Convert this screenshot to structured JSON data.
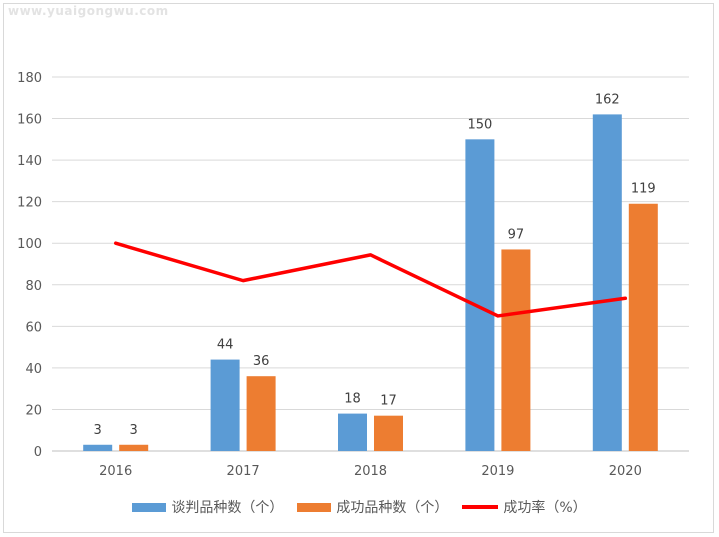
{
  "watermark": "www.yuaigongwu.com",
  "colors": {
    "blue": "#5b9bd5",
    "orange": "#ed7d31",
    "red": "#ff0000",
    "grid": "#d9d9d9",
    "axis": "#bfbfbf"
  },
  "chart_data": {
    "type": "bar",
    "title": "",
    "xlabel": "",
    "ylabel": "",
    "categories": [
      "2016",
      "2017",
      "2018",
      "2019",
      "2020"
    ],
    "ylim": [
      0,
      180
    ],
    "yticks": [
      0,
      20,
      40,
      60,
      80,
      100,
      120,
      140,
      160,
      180
    ],
    "grid": true,
    "legend_position": "bottom",
    "series": [
      {
        "name": "谈判品种数（个）",
        "type": "bar",
        "color": "#5b9bd5",
        "values": [
          3,
          44,
          18,
          150,
          162
        ],
        "labels": [
          "3",
          "44",
          "18",
          "150",
          "162"
        ]
      },
      {
        "name": "成功品种数（个）",
        "type": "bar",
        "color": "#ed7d31",
        "values": [
          3,
          36,
          17,
          97,
          119
        ],
        "labels": [
          "3",
          "36",
          "17",
          "97",
          "119"
        ]
      },
      {
        "name": "成功率（%）",
        "type": "line",
        "color": "#ff0000",
        "values": [
          100,
          82,
          94.4,
          65,
          73.5
        ]
      }
    ]
  }
}
